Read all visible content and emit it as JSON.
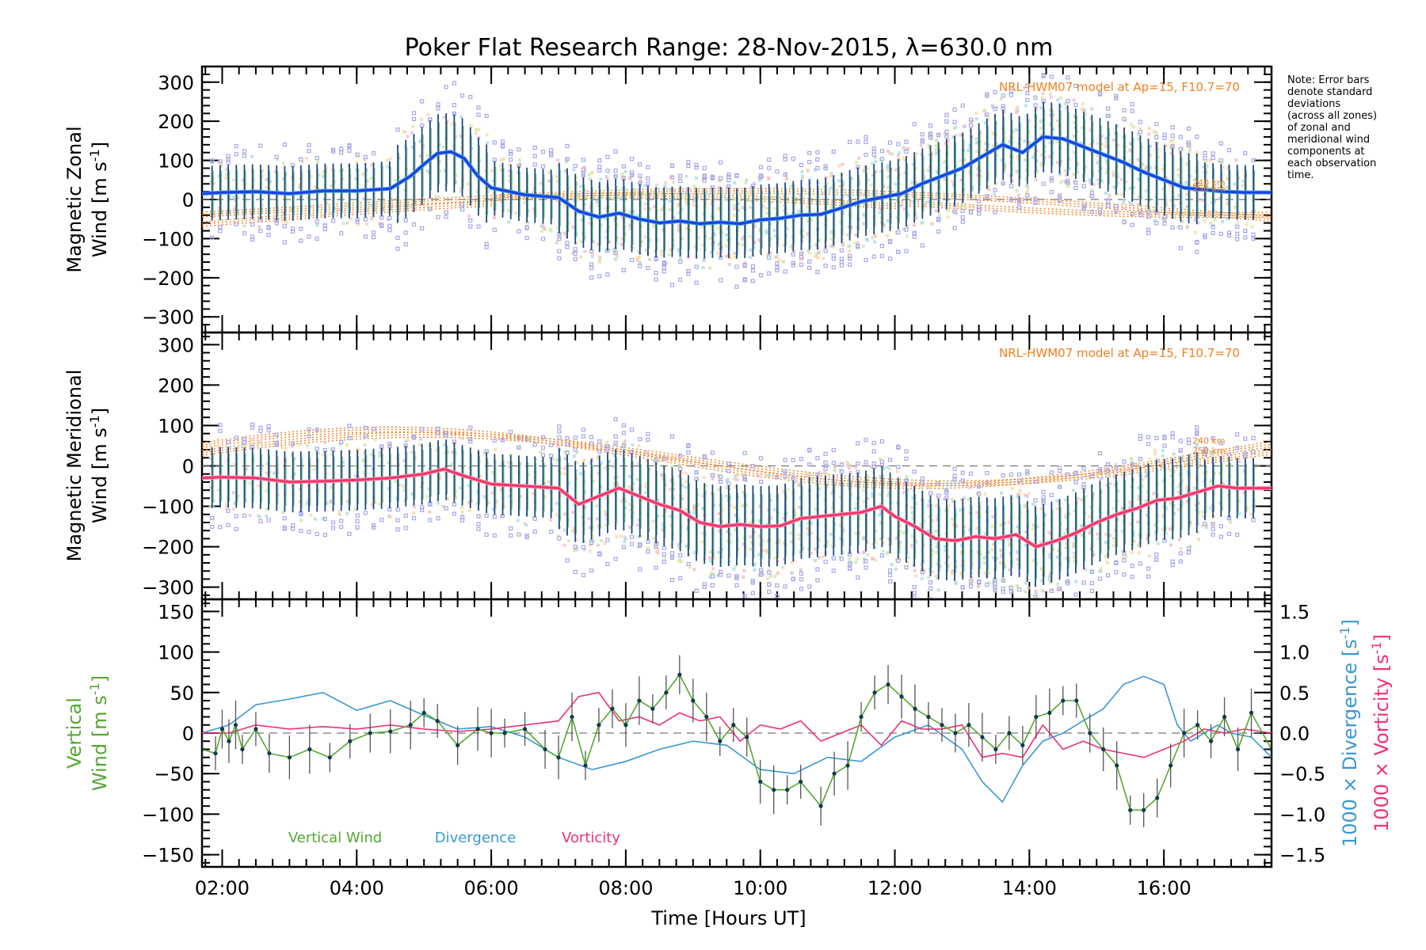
{
  "title": "Poker Flat Research Range: 28-Nov-2015, λ=630.0 nm",
  "note_lines": [
    "Note: Error bars",
    "denote standard",
    "deviations",
    "(across all zones)",
    "of zonal and",
    "meridional wind",
    "components at",
    "each observation",
    "time."
  ],
  "colors": {
    "zonal": "#1e3fe0",
    "zonal_light": "#3da2e0",
    "meridional": "#f0366a",
    "model": "#f08020",
    "vertical": "#55a832",
    "divergence": "#3a98d0",
    "vorticity": "#f0307a",
    "scatter": "#a8a8e8",
    "errorbar": "#1a4a80"
  },
  "xaxis": {
    "label": "Time [Hours UT]",
    "ticks": [
      "02:00",
      "04:00",
      "06:00",
      "08:00",
      "10:00",
      "12:00",
      "14:00",
      "16:00"
    ],
    "tick_hours": [
      2,
      4,
      6,
      8,
      10,
      12,
      14,
      16
    ],
    "range": [
      1.7,
      17.6
    ]
  },
  "panels": {
    "zonal": {
      "ylabel_line1": "Magnetic Zonal",
      "ylabel_line2": "Wind [m s",
      "ylabel_sup": "-1",
      "ylabel_close": "]",
      "yticks": [
        "300",
        "200",
        "100",
        "0",
        "−100",
        "−200",
        "−300"
      ],
      "ytick_values": [
        300,
        200,
        100,
        0,
        -100,
        -200,
        -300
      ],
      "ylim": [
        -340,
        340
      ],
      "model_label": "NRL-HWM07 model at Ap=15, F10.7=70",
      "alt_labels": [
        "240 km",
        "250 km"
      ]
    },
    "meridional": {
      "ylabel_line1": "Magnetic Meridional",
      "ylabel_line2": "Wind [m s",
      "ylabel_sup": "-1",
      "ylabel_close": "]",
      "yticks": [
        "300",
        "200",
        "100",
        "0",
        "−100",
        "−200",
        "−300"
      ],
      "ytick_values": [
        300,
        200,
        100,
        0,
        -100,
        -200,
        -300
      ],
      "ylim": [
        -330,
        330
      ],
      "model_label": "NRL-HWM07 model at Ap=15, F10.7=70",
      "alt_labels": [
        "240 km",
        "250 km"
      ]
    },
    "vertical": {
      "ylabel_line1": "Vertical",
      "ylabel_line2": "Wind [m s",
      "ylabel_sup": "-1",
      "ylabel_close": "]",
      "yticks": [
        "150",
        "100",
        "50",
        "0",
        "−50",
        "−100",
        "−150"
      ],
      "ytick_values": [
        150,
        100,
        50,
        0,
        -50,
        -100,
        -150
      ],
      "ylim": [
        -165,
        165
      ],
      "right_ticks": [
        "1.5",
        "1.0",
        "0.5",
        "0.0",
        "−0.5",
        "−1.0",
        "−1.5"
      ],
      "right_tick_values": [
        1.5,
        1.0,
        0.5,
        0.0,
        -0.5,
        -1.0,
        -1.5
      ],
      "right_ylim": [
        -1.65,
        1.65
      ],
      "right_label1": "1000 × Divergence [s",
      "right_label2": "1000 × Vorticity [s",
      "right_sup": "-1",
      "right_close": "]",
      "legend": [
        "Vertical Wind",
        "Divergence",
        "Vorticity"
      ]
    }
  },
  "chart_data": [
    {
      "type": "line",
      "title": "Poker Flat Research Range: 28-Nov-2015, λ=630.0 nm",
      "ylabel": "Magnetic Zonal Wind [m s-1]",
      "xlabel": "Time [Hours UT]",
      "ylim": [
        -340,
        340
      ],
      "series": [
        {
          "name": "",
          "x": [
            1.7,
            2.0,
            2.5,
            3.0,
            3.5,
            4.0,
            4.5,
            4.8,
            5.0,
            5.2,
            5.4,
            5.6,
            5.8,
            6.0,
            6.5,
            7.0,
            7.3,
            7.6,
            7.9,
            8.2,
            8.5,
            8.8,
            9.1,
            9.4,
            9.7,
            10.0,
            10.3,
            10.6,
            10.9,
            11.2,
            11.5,
            11.8,
            12.1,
            12.4,
            12.7,
            13.0,
            13.3,
            13.6,
            13.9,
            14.2,
            14.5,
            14.8,
            15.1,
            15.4,
            15.7,
            16.0,
            16.3,
            16.6,
            16.9,
            17.2,
            17.6
          ],
          "y": [
            15,
            18,
            20,
            15,
            22,
            22,
            28,
            60,
            90,
            118,
            122,
            105,
            60,
            30,
            12,
            5,
            -30,
            -45,
            -35,
            -50,
            -60,
            -55,
            -62,
            -58,
            -62,
            -52,
            -48,
            -40,
            -38,
            -22,
            -5,
            5,
            15,
            40,
            60,
            80,
            110,
            140,
            120,
            160,
            155,
            135,
            115,
            95,
            70,
            50,
            30,
            25,
            20,
            18,
            18
          ]
        }
      ]
    },
    {
      "type": "line",
      "ylabel": "Magnetic Meridional Wind [m s-1]",
      "xlabel": "Time [Hours UT]",
      "ylim": [
        -330,
        330
      ],
      "series": [
        {
          "name": "",
          "x": [
            1.7,
            2.0,
            2.5,
            3.0,
            3.5,
            4.0,
            4.5,
            5.0,
            5.3,
            5.6,
            6.0,
            6.5,
            7.0,
            7.3,
            7.6,
            7.9,
            8.2,
            8.5,
            8.8,
            9.1,
            9.4,
            9.7,
            10.0,
            10.3,
            10.6,
            10.9,
            11.2,
            11.5,
            11.8,
            12.0,
            12.3,
            12.6,
            12.9,
            13.2,
            13.5,
            13.8,
            14.1,
            14.4,
            14.7,
            15.0,
            15.3,
            15.6,
            15.9,
            16.2,
            16.5,
            16.8,
            17.1,
            17.6
          ],
          "y": [
            -30,
            -28,
            -30,
            -40,
            -38,
            -35,
            -30,
            -20,
            -8,
            -25,
            -45,
            -50,
            -55,
            -95,
            -75,
            -55,
            -75,
            -95,
            -110,
            -140,
            -150,
            -145,
            -150,
            -148,
            -130,
            -125,
            -120,
            -115,
            -100,
            -125,
            -150,
            -180,
            -185,
            -175,
            -180,
            -170,
            -200,
            -185,
            -165,
            -140,
            -120,
            -105,
            -85,
            -80,
            -65,
            -50,
            -55,
            -55
          ]
        }
      ]
    },
    {
      "type": "line",
      "ylabel": "Vertical Wind [m s-1]",
      "xlabel": "Time [Hours UT]",
      "ylim": [
        -165,
        165
      ],
      "y2lim": [
        -1.65,
        1.65
      ],
      "series": [
        {
          "name": "Vertical Wind",
          "x": [
            1.7,
            1.9,
            2.0,
            2.1,
            2.2,
            2.3,
            2.5,
            2.7,
            3.0,
            3.3,
            3.6,
            3.9,
            4.2,
            4.5,
            4.8,
            5.0,
            5.2,
            5.5,
            5.8,
            6.0,
            6.2,
            6.5,
            6.8,
            7.0,
            7.2,
            7.4,
            7.6,
            7.8,
            8.0,
            8.2,
            8.4,
            8.6,
            8.8,
            9.0,
            9.2,
            9.4,
            9.6,
            9.8,
            10.0,
            10.2,
            10.4,
            10.6,
            10.9,
            11.1,
            11.3,
            11.5,
            11.7,
            11.9,
            12.1,
            12.3,
            12.5,
            12.7,
            12.9,
            13.1,
            13.3,
            13.5,
            13.7,
            13.9,
            14.1,
            14.3,
            14.5,
            14.7,
            14.9,
            15.1,
            15.3,
            15.5,
            15.7,
            15.9,
            16.1,
            16.3,
            16.5,
            16.7,
            16.9,
            17.1,
            17.3,
            17.6
          ],
          "y": [
            -20,
            -25,
            5,
            -10,
            10,
            -20,
            5,
            -25,
            -30,
            -20,
            -30,
            -10,
            0,
            2,
            10,
            25,
            15,
            -15,
            5,
            0,
            0,
            5,
            -20,
            -30,
            20,
            -40,
            10,
            30,
            10,
            40,
            30,
            50,
            72,
            40,
            20,
            -10,
            10,
            -5,
            -60,
            -70,
            -70,
            -60,
            -90,
            -50,
            -40,
            20,
            50,
            60,
            45,
            30,
            20,
            10,
            0,
            10,
            -5,
            -20,
            0,
            -15,
            20,
            25,
            40,
            40,
            0,
            -20,
            -40,
            -95,
            -95,
            -80,
            -40,
            0,
            10,
            -10,
            20,
            -20,
            25,
            -20
          ]
        },
        {
          "name": "Divergence",
          "x": [
            1.7,
            2.1,
            2.5,
            3.0,
            3.5,
            4.0,
            4.5,
            5.0,
            5.5,
            6.0,
            6.5,
            7.0,
            7.5,
            8.0,
            8.5,
            9.0,
            9.5,
            10.0,
            10.5,
            11.0,
            11.5,
            12.0,
            12.5,
            13.0,
            13.3,
            13.6,
            13.9,
            14.2,
            14.5,
            14.8,
            15.1,
            15.4,
            15.7,
            16.0,
            16.2,
            16.4,
            16.6,
            16.8,
            17.0,
            17.3,
            17.6
          ],
          "y": [
            0.0,
            0.1,
            0.35,
            0.42,
            0.5,
            0.28,
            0.4,
            0.22,
            0.05,
            0.08,
            -0.05,
            -0.3,
            -0.45,
            -0.35,
            -0.2,
            -0.1,
            -0.15,
            -0.45,
            -0.5,
            -0.3,
            -0.35,
            -0.05,
            0.1,
            -0.2,
            -0.6,
            -0.85,
            -0.4,
            -0.1,
            0.0,
            0.15,
            0.3,
            0.6,
            0.7,
            0.6,
            0.1,
            -0.1,
            0.0,
            0.1,
            0.0,
            -0.05,
            -0.3
          ]
        },
        {
          "name": "Vorticity",
          "x": [
            1.7,
            2.1,
            2.5,
            3.0,
            3.5,
            4.0,
            4.5,
            5.0,
            5.5,
            6.0,
            6.5,
            7.0,
            7.3,
            7.6,
            7.9,
            8.2,
            8.5,
            8.8,
            9.1,
            9.4,
            9.7,
            10.0,
            10.3,
            10.6,
            10.9,
            11.2,
            11.5,
            11.8,
            12.1,
            12.4,
            12.7,
            13.0,
            13.3,
            13.6,
            13.9,
            14.2,
            14.5,
            14.8,
            15.1,
            15.4,
            15.7,
            16.0,
            16.3,
            16.6,
            16.9,
            17.2,
            17.6
          ],
          "y": [
            0.0,
            0.0,
            0.1,
            0.05,
            0.08,
            0.05,
            0.1,
            0.05,
            0.02,
            0.05,
            0.1,
            0.15,
            0.45,
            0.5,
            0.15,
            0.2,
            0.1,
            0.25,
            0.15,
            0.2,
            -0.1,
            0.1,
            0.05,
            0.15,
            -0.1,
            0.0,
            0.1,
            -0.15,
            0.15,
            0.05,
            0.05,
            0.1,
            -0.3,
            -0.25,
            -0.3,
            0.1,
            -0.2,
            -0.1,
            -0.2,
            -0.25,
            -0.3,
            -0.2,
            -0.1,
            0.05,
            0.0,
            0.05,
            0.0
          ]
        }
      ]
    }
  ]
}
